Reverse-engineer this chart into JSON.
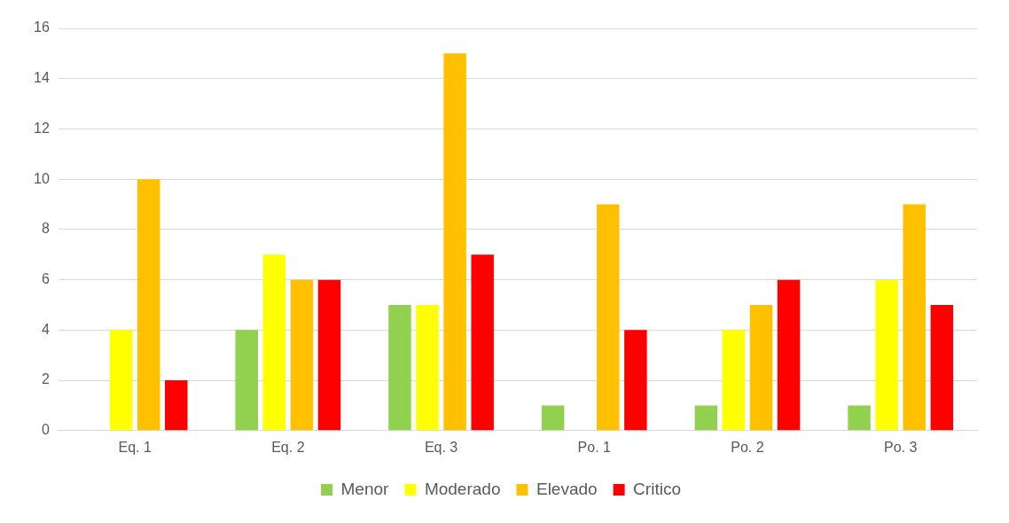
{
  "chart_data": {
    "type": "bar",
    "categories": [
      "Eq. 1",
      "Eq. 2",
      "Eq. 3",
      "Po. 1",
      "Po. 2",
      "Po. 3"
    ],
    "series": [
      {
        "name": "Menor",
        "color": "#92d050",
        "values": [
          0,
          4,
          5,
          1,
          1,
          1
        ]
      },
      {
        "name": "Moderado",
        "color": "#ffff00",
        "values": [
          4,
          7,
          5,
          0,
          4,
          6
        ]
      },
      {
        "name": "Elevado",
        "color": "#ffc000",
        "values": [
          10,
          6,
          15,
          9,
          5,
          9
        ]
      },
      {
        "name": "Critico",
        "color": "#ff0000",
        "values": [
          2,
          6,
          7,
          4,
          6,
          5
        ]
      }
    ],
    "ylim": [
      0,
      16
    ],
    "yticks": [
      0,
      2,
      4,
      6,
      8,
      10,
      12,
      14,
      16
    ],
    "grid": "y",
    "legend": "bottom"
  }
}
